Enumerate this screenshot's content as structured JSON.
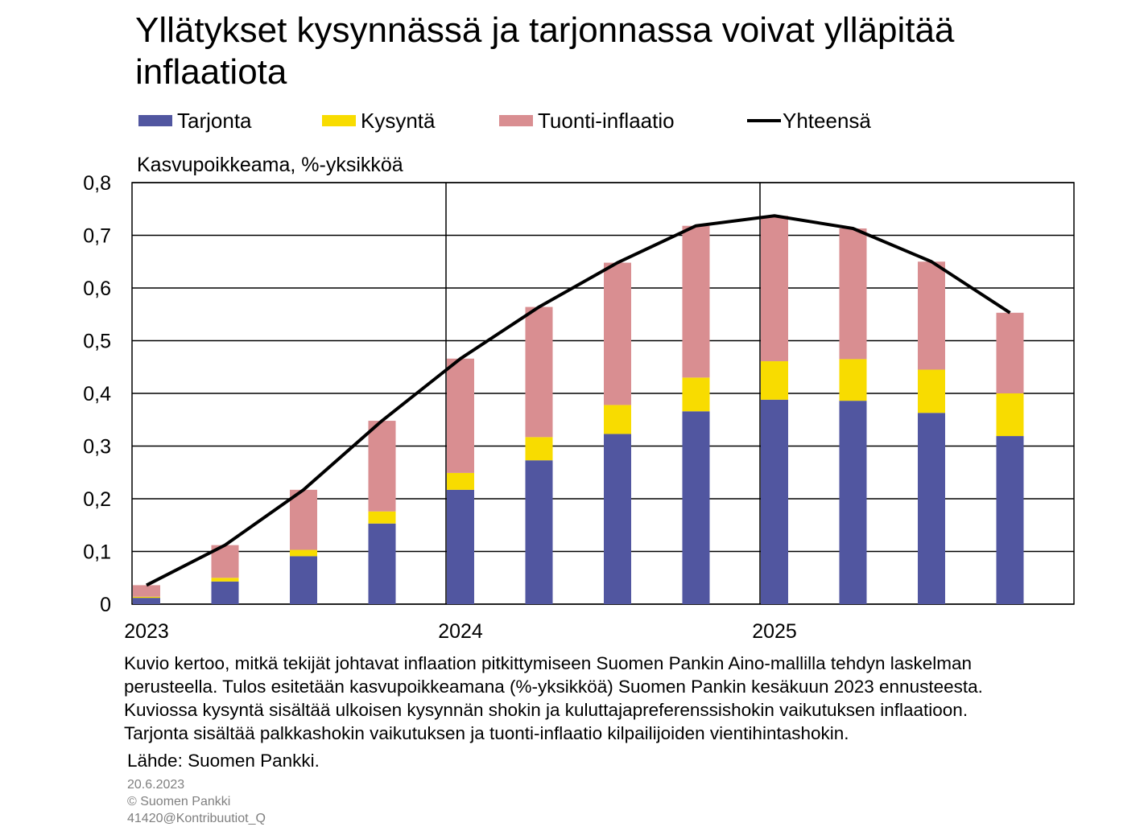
{
  "title": "Yllätykset kysynnässä ja tarjonnassa voivat ylläpitää inflaatiota",
  "legend": {
    "supply": "Tarjonta",
    "demand": "Kysyntä",
    "import": "Tuonti-inflaatio",
    "total": "Yhteensä"
  },
  "colors": {
    "supply": "#5156a0",
    "demand": "#f8dc00",
    "import": "#d98e91",
    "total": "#000000"
  },
  "chart_data": {
    "type": "bar",
    "stacked": true,
    "title": "Yllätykset kysynnässä ja tarjonnassa voivat ylläpitää inflaatiota",
    "ylabel": "Kasvupoikkeama, %-yksikköä",
    "xlabel": "",
    "ylim": [
      0,
      0.8
    ],
    "yticks": [
      "0",
      "0,1",
      "0,2",
      "0,3",
      "0,4",
      "0,5",
      "0,6",
      "0,7",
      "0,8"
    ],
    "year_labels": [
      "2023",
      "2024",
      "2025"
    ],
    "categories": [
      "2023Q1",
      "2023Q2",
      "2023Q3",
      "2023Q4",
      "2024Q1",
      "2024Q2",
      "2024Q3",
      "2024Q4",
      "2025Q1",
      "2025Q2",
      "2025Q3",
      "2025Q4"
    ],
    "series": [
      {
        "name": "Tarjonta",
        "values": [
          0.012,
          0.043,
          0.091,
          0.153,
          0.217,
          0.273,
          0.323,
          0.366,
          0.388,
          0.386,
          0.363,
          0.319
        ]
      },
      {
        "name": "Kysyntä",
        "values": [
          0.002,
          0.007,
          0.012,
          0.023,
          0.032,
          0.044,
          0.055,
          0.064,
          0.073,
          0.079,
          0.082,
          0.081
        ]
      },
      {
        "name": "Tuonti-inflaatio",
        "values": [
          0.022,
          0.062,
          0.114,
          0.172,
          0.217,
          0.247,
          0.27,
          0.288,
          0.276,
          0.248,
          0.205,
          0.153
        ]
      },
      {
        "name": "Yhteensä",
        "type": "line",
        "values": [
          0.036,
          0.112,
          0.217,
          0.348,
          0.466,
          0.564,
          0.648,
          0.718,
          0.737,
          0.713,
          0.65,
          0.553
        ]
      }
    ]
  },
  "note": {
    "lines": [
      "Kuvio kertoo, mitkä tekijät johtavat inflaation pitkittymiseen Suomen Pankin Aino-mallilla tehdyn laskelman",
      "perusteella. Tulos esitetään kasvupoikkeamana (%-yksikköä) Suomen Pankin kesäkuun 2023 ennusteesta.",
      "Kuviossa kysyntä sisältää ulkoisen kysynnän shokin ja kuluttajapreferenssishokin vaikutuksen inflaatioon.",
      "Tarjonta sisältää palkkashokin vaikutuksen ja tuonti-inflaatio kilpailijoiden vientihintashokin."
    ]
  },
  "source": "Lähde: Suomen Pankki.",
  "meta": {
    "date": "20.6.2023",
    "copyright": "© Suomen Pankki",
    "id": "41420@Kontribuutiot_Q"
  }
}
